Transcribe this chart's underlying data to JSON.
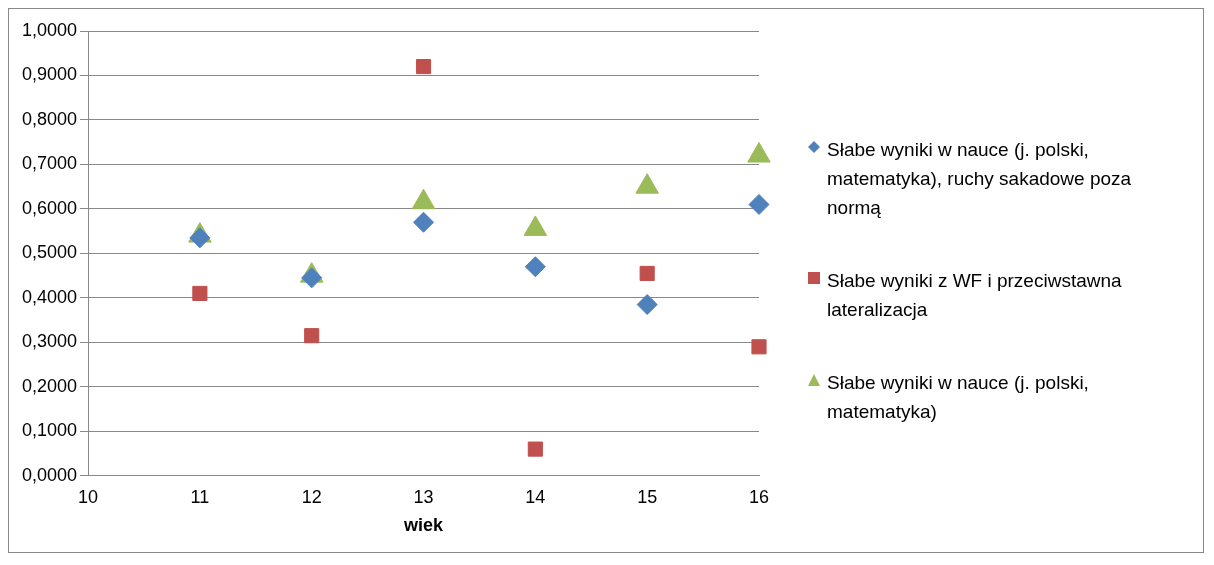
{
  "chart_data": {
    "type": "scatter",
    "xlabel": "wiek",
    "xlim": [
      10,
      16
    ],
    "xticks": [
      10,
      11,
      12,
      13,
      14,
      15,
      16
    ],
    "ylim": [
      0,
      1
    ],
    "yticks": [
      {
        "value": 0,
        "label": "0,0000"
      },
      {
        "value": 0.1,
        "label": "0,1000"
      },
      {
        "value": 0.2,
        "label": "0,2000"
      },
      {
        "value": 0.3,
        "label": "0,3000"
      },
      {
        "value": 0.4,
        "label": "0,4000"
      },
      {
        "value": 0.5,
        "label": "0,5000"
      },
      {
        "value": 0.6,
        "label": "0,6000"
      },
      {
        "value": 0.7,
        "label": "0,7000"
      },
      {
        "value": 0.8,
        "label": "0,8000"
      },
      {
        "value": 0.9,
        "label": "0,9000"
      },
      {
        "value": 1,
        "label": "1,0000"
      }
    ],
    "grid": "y",
    "legend": "right",
    "x": [
      11,
      12,
      13,
      14,
      15,
      16
    ],
    "series": [
      {
        "name": "Słabe wyniki w nauce (j. polski, matematyka), ruchy sakadowe poza normą",
        "color": "#4f81bd",
        "marker": "diamond",
        "values": [
          0.535,
          0.445,
          0.57,
          0.47,
          0.385,
          0.61
        ]
      },
      {
        "name": "Słabe wyniki z WF i przeciwstawna lateralizacja",
        "color": "#c0504d",
        "marker": "square",
        "values": [
          0.41,
          0.315,
          0.92,
          0.06,
          0.455,
          0.29
        ]
      },
      {
        "name": "Słabe wyniki w nauce (j. polski, matematyka)",
        "color": "#9bbb59",
        "marker": "triangle",
        "values": [
          0.54,
          0.45,
          0.615,
          0.555,
          0.65,
          0.72
        ]
      }
    ]
  }
}
